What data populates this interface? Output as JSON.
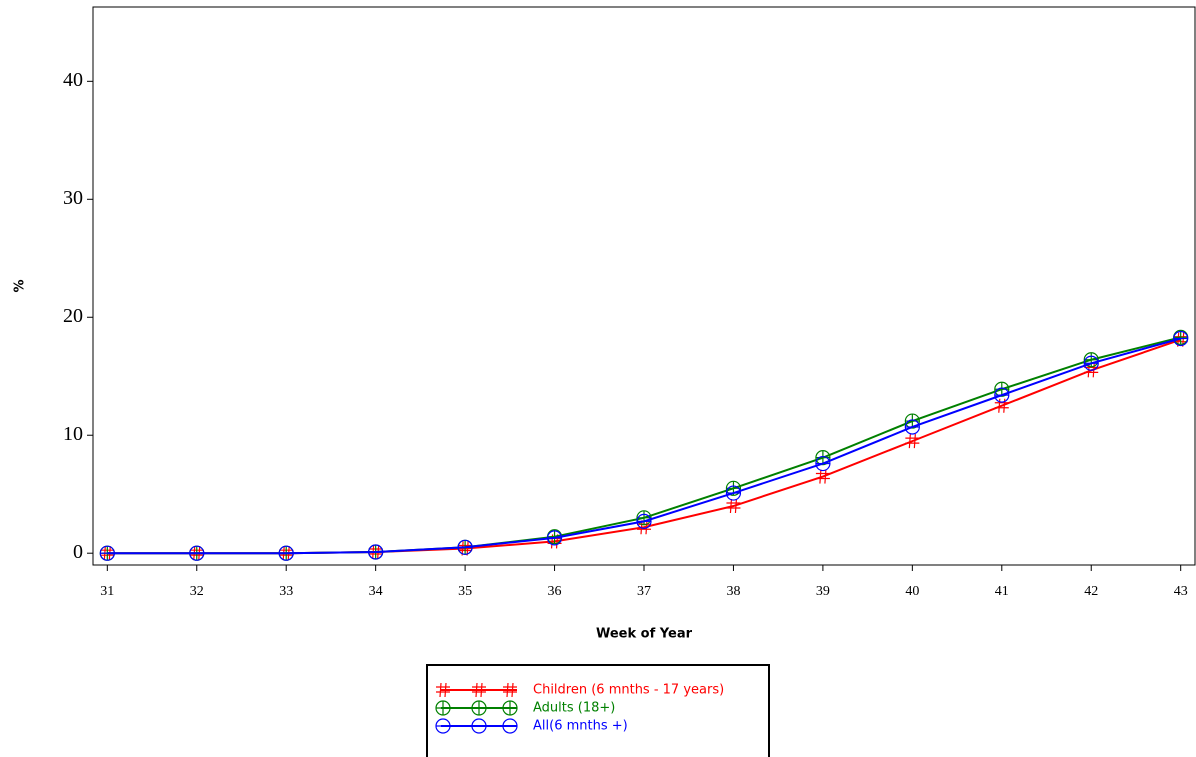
{
  "chart_data": {
    "type": "line",
    "x_label": "Week of Year",
    "y_label": "%",
    "x": [
      31,
      32,
      33,
      34,
      35,
      36,
      37,
      38,
      39,
      40,
      41,
      42,
      43
    ],
    "series": [
      {
        "name": "Children (6 mnths - 17 years)",
        "color": "#ff0000",
        "marker": "cross",
        "values": [
          0,
          0,
          0,
          0.1,
          0.4,
          1.0,
          2.2,
          4.0,
          6.5,
          9.5,
          12.5,
          15.5,
          18.1
        ]
      },
      {
        "name": "Adults (18+)",
        "color": "#008000",
        "marker": "circle-plus",
        "values": [
          0,
          0,
          0,
          0.1,
          0.5,
          1.4,
          3.0,
          5.5,
          8.1,
          11.2,
          13.9,
          16.4,
          18.3
        ]
      },
      {
        "name": "All(6 mnths +)",
        "color": "#0000ff",
        "marker": "circle-bar",
        "values": [
          0,
          0,
          0,
          0.1,
          0.5,
          1.3,
          2.7,
          5.1,
          7.6,
          10.7,
          13.4,
          16.1,
          18.2
        ]
      }
    ],
    "xlim": [
      30.84,
      43.16
    ],
    "xticks": [
      31,
      32,
      33,
      34,
      35,
      36,
      37,
      38,
      39,
      40,
      41,
      42,
      43
    ],
    "ylim": [
      -1,
      46.3
    ],
    "yticks": [
      0,
      10,
      20,
      30,
      40
    ],
    "legend": "bottom"
  }
}
